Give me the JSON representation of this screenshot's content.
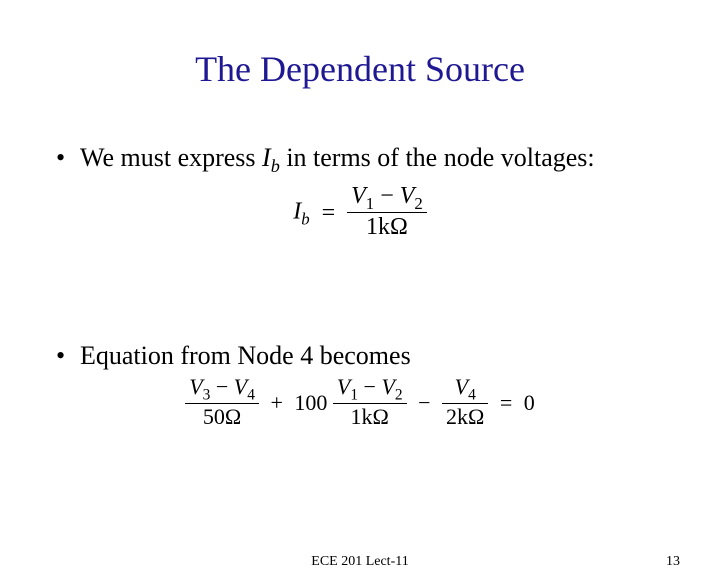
{
  "title": {
    "text": "The Dependent Source",
    "color": "#1f1893",
    "fontsize": 36
  },
  "bullets": [
    {
      "prefix": "We must express ",
      "symbol": "I",
      "symbol_sub": "b",
      "suffix": " in terms of the node voltages:"
    },
    {
      "text": "Equation from Node 4 becomes"
    }
  ],
  "equation1": {
    "lhs_var": "I",
    "lhs_sub": "b",
    "num_a_var": "V",
    "num_a_sub": "1",
    "num_b_var": "V",
    "num_b_sub": "2",
    "den": "1kΩ"
  },
  "equation2": {
    "t1_num_a_var": "V",
    "t1_num_a_sub": "3",
    "t1_num_b_var": "V",
    "t1_num_b_sub": "4",
    "t1_den": "50Ω",
    "coef": "100",
    "t2_num_a_var": "V",
    "t2_num_a_sub": "1",
    "t2_num_b_var": "V",
    "t2_num_b_sub": "2",
    "t2_den": "1kΩ",
    "t3_num_var": "V",
    "t3_num_sub": "4",
    "t3_den": "2kΩ",
    "rhs": "0"
  },
  "footer": {
    "center": "ECE 201 Lect-11",
    "page": "13"
  },
  "body_text_color": "#000000",
  "body_fontsize": 26,
  "background_color": "#ffffff"
}
